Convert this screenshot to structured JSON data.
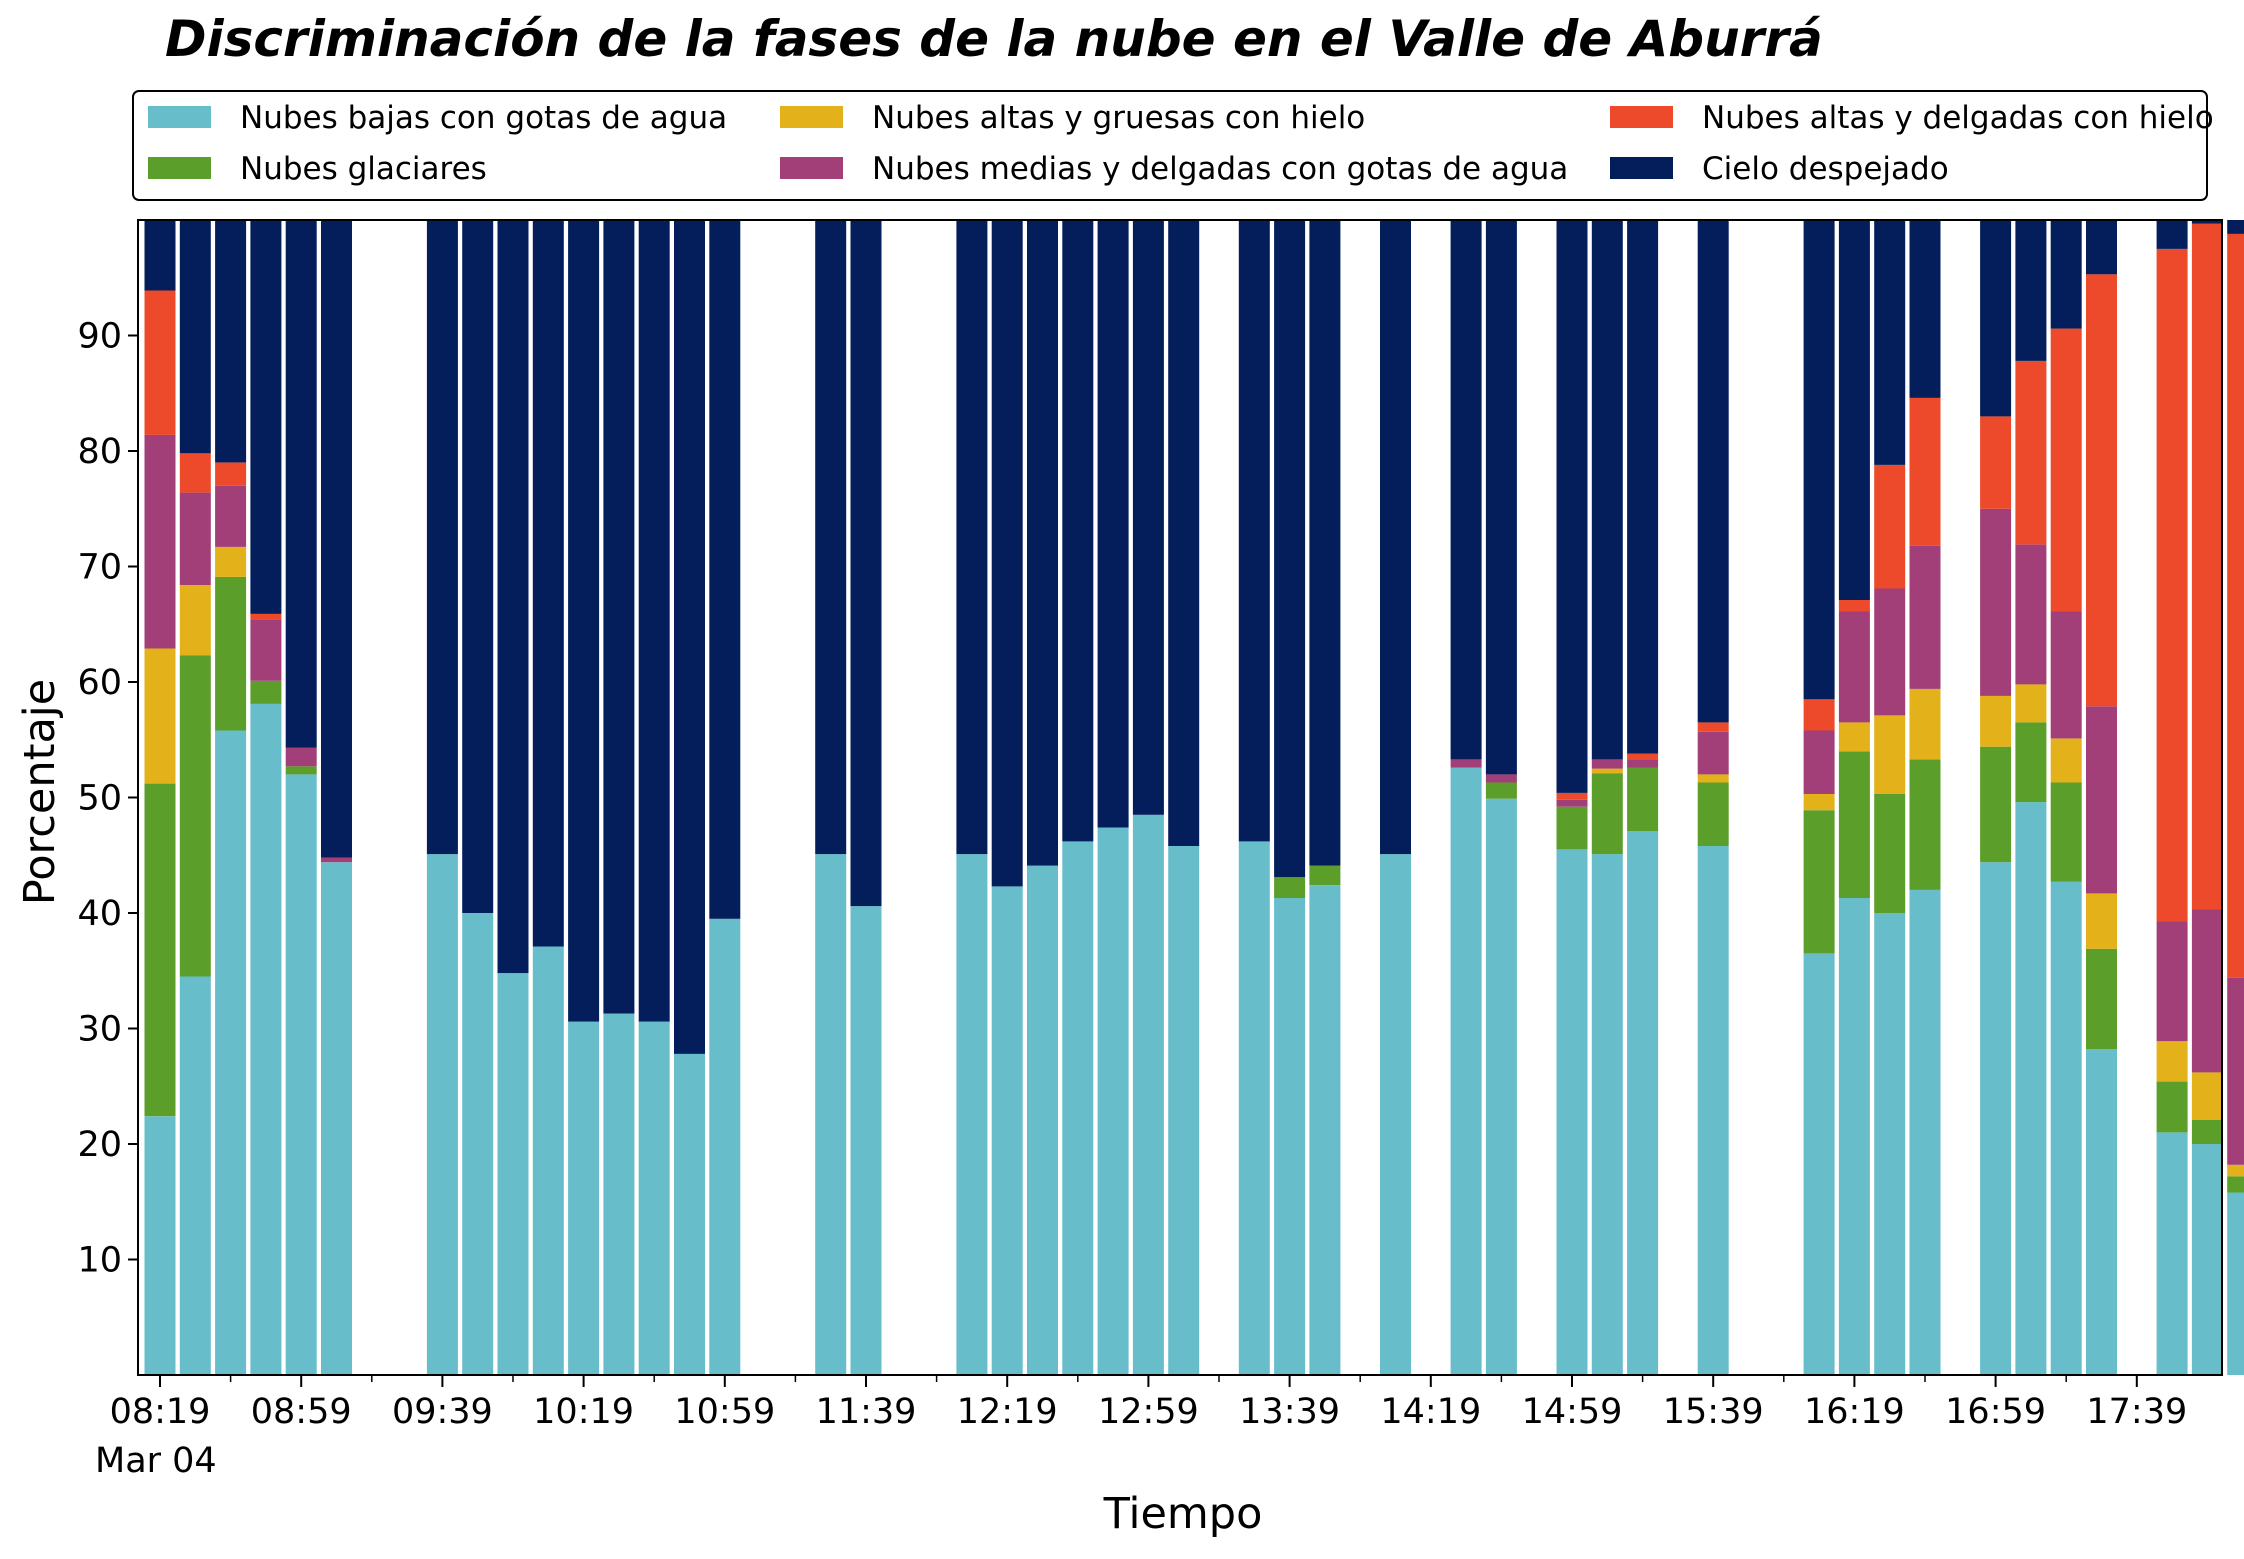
{
  "chart_data": {
    "type": "bar",
    "stacked": true,
    "title": "Discriminación de la fases de la nube en el Valle de Aburrá",
    "xlabel": "Tiempo",
    "ylabel": "Porcentaje",
    "ylim": [
      0,
      100
    ],
    "yticks": [
      10,
      20,
      30,
      40,
      50,
      60,
      70,
      80,
      90
    ],
    "x_ticks": [
      "08:19",
      "08:59",
      "09:39",
      "10:19",
      "10:59",
      "11:39",
      "12:19",
      "12:59",
      "13:39",
      "14:19",
      "14:59",
      "15:39",
      "16:19",
      "16:59",
      "17:39"
    ],
    "x_date_label": "Mar 04",
    "x_start": "08:19",
    "x_interval_minutes": 10,
    "legend_placement": "top, above plot, 3 columns",
    "grid": false,
    "series": [
      {
        "name": "Nubes bajas con gotas de agua",
        "color": "#67bdc9"
      },
      {
        "name": "Nubes glaciares",
        "color": "#5c9e2a"
      },
      {
        "name": "Nubes altas y gruesas con hielo",
        "color": "#e3b11a"
      },
      {
        "name": "Nubes medias y delgadas con gotas de agua",
        "color": "#a23f78"
      },
      {
        "name": "Nubes altas y delgadas con hielo",
        "color": "#ec4a2a"
      },
      {
        "name": "Cielo despejado",
        "color": "#041e5c"
      }
    ],
    "bars": [
      {
        "x": "08:19",
        "values": [
          22.4,
          28.8,
          11.7,
          18.5,
          12.5,
          6.1
        ]
      },
      {
        "x": "08:29",
        "values": [
          34.5,
          27.8,
          6.1,
          8.0,
          3.4,
          20.2
        ]
      },
      {
        "x": "08:39",
        "values": [
          55.8,
          13.3,
          2.6,
          5.3,
          2.0,
          21.0
        ]
      },
      {
        "x": "08:49",
        "values": [
          58.1,
          2.0,
          0,
          5.3,
          0.5,
          34.1
        ]
      },
      {
        "x": "08:59",
        "values": [
          52.0,
          0.7,
          0,
          1.6,
          0,
          45.7
        ]
      },
      {
        "x": "09:09",
        "values": [
          44.4,
          0,
          0,
          0.4,
          0,
          55.2
        ]
      },
      {
        "x": "09:39",
        "values": [
          45.1,
          0,
          0,
          0,
          0,
          54.9
        ]
      },
      {
        "x": "09:49",
        "values": [
          40.0,
          0,
          0,
          0,
          0,
          60.0
        ]
      },
      {
        "x": "09:59",
        "values": [
          34.8,
          0,
          0,
          0,
          0,
          65.2
        ]
      },
      {
        "x": "10:09",
        "values": [
          37.1,
          0,
          0,
          0,
          0,
          62.9
        ]
      },
      {
        "x": "10:19",
        "values": [
          30.6,
          0,
          0,
          0,
          0,
          69.4
        ]
      },
      {
        "x": "10:29",
        "values": [
          31.3,
          0,
          0,
          0,
          0,
          68.7
        ]
      },
      {
        "x": "10:39",
        "values": [
          30.6,
          0,
          0,
          0,
          0,
          69.4
        ]
      },
      {
        "x": "10:49",
        "values": [
          27.8,
          0,
          0,
          0,
          0,
          72.2
        ]
      },
      {
        "x": "10:59",
        "values": [
          39.5,
          0,
          0,
          0,
          0,
          60.5
        ]
      },
      {
        "x": "11:29",
        "values": [
          45.1,
          0,
          0,
          0,
          0,
          54.9
        ]
      },
      {
        "x": "11:39",
        "values": [
          40.6,
          0,
          0,
          0,
          0,
          59.4
        ]
      },
      {
        "x": "12:09",
        "values": [
          45.1,
          0,
          0,
          0,
          0,
          54.9
        ]
      },
      {
        "x": "12:19",
        "values": [
          42.3,
          0,
          0,
          0,
          0,
          57.7
        ]
      },
      {
        "x": "12:29",
        "values": [
          44.1,
          0,
          0,
          0,
          0,
          55.9
        ]
      },
      {
        "x": "12:39",
        "values": [
          46.2,
          0,
          0,
          0,
          0,
          53.8
        ]
      },
      {
        "x": "12:49",
        "values": [
          47.4,
          0,
          0,
          0,
          0,
          52.6
        ]
      },
      {
        "x": "12:59",
        "values": [
          48.5,
          0,
          0,
          0,
          0,
          51.5
        ]
      },
      {
        "x": "13:09",
        "values": [
          45.8,
          0,
          0,
          0,
          0,
          54.2
        ]
      },
      {
        "x": "13:29",
        "values": [
          46.2,
          0,
          0,
          0,
          0,
          53.8
        ]
      },
      {
        "x": "13:39",
        "values": [
          41.3,
          1.8,
          0,
          0,
          0,
          56.9
        ]
      },
      {
        "x": "13:49",
        "values": [
          42.4,
          1.7,
          0,
          0,
          0,
          55.9
        ]
      },
      {
        "x": "14:09",
        "values": [
          45.1,
          0,
          0,
          0,
          0,
          54.9
        ]
      },
      {
        "x": "14:29",
        "values": [
          52.6,
          0,
          0,
          0.7,
          0,
          46.7
        ]
      },
      {
        "x": "14:39",
        "values": [
          49.9,
          1.4,
          0,
          0.7,
          0,
          48.0
        ]
      },
      {
        "x": "14:59",
        "values": [
          45.5,
          3.7,
          0,
          0.6,
          0.6,
          49.6
        ]
      },
      {
        "x": "15:09",
        "values": [
          45.1,
          7.0,
          0.4,
          0.8,
          0,
          46.7
        ]
      },
      {
        "x": "15:19",
        "values": [
          47.1,
          5.5,
          0,
          0.7,
          0.5,
          46.2
        ]
      },
      {
        "x": "15:39",
        "values": [
          45.8,
          5.5,
          0.7,
          3.7,
          0.8,
          43.5
        ]
      },
      {
        "x": "16:09",
        "values": [
          36.5,
          12.4,
          1.4,
          5.5,
          2.7,
          41.5
        ]
      },
      {
        "x": "16:19",
        "values": [
          41.3,
          12.7,
          2.5,
          9.6,
          1.0,
          32.9
        ]
      },
      {
        "x": "16:29",
        "values": [
          40.0,
          10.3,
          6.8,
          11.0,
          10.7,
          21.2
        ]
      },
      {
        "x": "16:39",
        "values": [
          42.0,
          11.3,
          6.1,
          12.4,
          12.8,
          15.4
        ]
      },
      {
        "x": "16:59",
        "values": [
          44.4,
          10.0,
          4.4,
          16.2,
          8.0,
          17.0
        ]
      },
      {
        "x": "17:09",
        "values": [
          49.6,
          6.9,
          3.3,
          12.1,
          15.9,
          12.2
        ]
      },
      {
        "x": "17:19",
        "values": [
          42.7,
          8.6,
          3.8,
          11.0,
          24.5,
          9.4
        ]
      },
      {
        "x": "17:29",
        "values": [
          28.2,
          8.7,
          4.8,
          16.2,
          37.4,
          4.7
        ]
      },
      {
        "x": "17:49",
        "values": [
          21.0,
          4.4,
          3.5,
          10.4,
          58.2,
          2.5
        ]
      },
      {
        "x": "17:59",
        "values": [
          20.0,
          2.1,
          4.1,
          14.1,
          59.4,
          0.3
        ]
      },
      {
        "x": "18:09",
        "values": [
          15.8,
          1.4,
          1.0,
          16.2,
          64.4,
          1.2
        ]
      }
    ]
  }
}
